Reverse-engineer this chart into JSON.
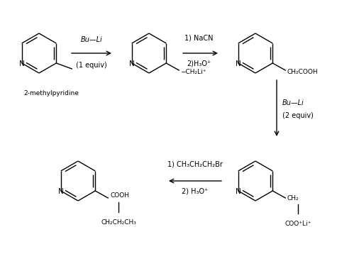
{
  "background": "#ffffff",
  "figsize": [
    4.75,
    3.58
  ],
  "dpi": 100,
  "lw": 1.0,
  "fs_label": 7.0,
  "fs_sub": 6.5,
  "fs_N": 7.5,
  "structures": {
    "mol1_label": "2-methylpyridine",
    "arrow1_top": "Bu—Li",
    "arrow1_bot": "(1 equiv)",
    "arrow2_top": "1) NaCN",
    "arrow2_bot": "2)H₃O⁺",
    "mol2_sub": "−CH₂Li⁺",
    "mol3_sub": "CH₂COOH",
    "arrow3_top": "Bu—Li",
    "arrow3_bot": "(2 equiv)",
    "mol4_sub1": "CH₂",
    "mol4_sub2": "COO⁺Li⁺",
    "arrow4_top": "1) CH₃CH₂CH₂Br",
    "arrow4_bot": "2) H₃O⁺",
    "mol5_sub1": "COOH",
    "mol5_sub2": "CH₂CH₂CH₃"
  }
}
